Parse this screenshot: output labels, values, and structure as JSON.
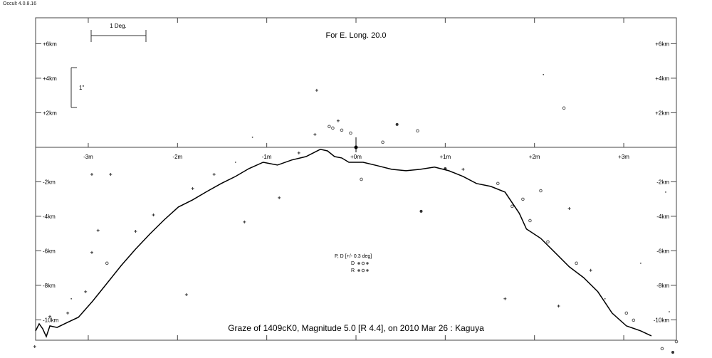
{
  "app_version": "Occult 4.0.8.16",
  "chart_data": {
    "type": "line",
    "title": "For E. Long. 20.0",
    "caption": "Graze of  1409cK0,  Magnitude 5.0 [R 4.4],  on 2010 Mar 26  :  Kaguya",
    "scale_bars": {
      "horizontal": "1 Deg.",
      "vertical": "1\""
    },
    "legend": {
      "heading": "P, D [+/- 0.3 deg]",
      "rows": [
        "D",
        "R"
      ]
    },
    "xlim": [
      -3.59,
      3.59
    ],
    "ylim": [
      -11.18,
      7.5
    ],
    "x_ticks": [
      {
        "v": -3,
        "label": "-3m"
      },
      {
        "v": -2,
        "label": "-2m"
      },
      {
        "v": -1,
        "label": "-1m"
      },
      {
        "v": 0,
        "label": "+0m"
      },
      {
        "v": 1,
        "label": "+1m"
      },
      {
        "v": 2,
        "label": "+2m"
      },
      {
        "v": 3,
        "label": "+3m"
      }
    ],
    "y_ticks": [
      {
        "v": 6,
        "label": "+6km"
      },
      {
        "v": 4,
        "label": "+4km"
      },
      {
        "v": 2,
        "label": "+2km"
      },
      {
        "v": -2,
        "label": "-2km"
      },
      {
        "v": -4,
        "label": "-4km"
      },
      {
        "v": -6,
        "label": "-6km"
      },
      {
        "v": -8,
        "label": "-8km"
      },
      {
        "v": -10,
        "label": "-10km"
      }
    ],
    "profile": [
      [
        -3.59,
        -10.64
      ],
      [
        -3.55,
        -10.23
      ],
      [
        -3.51,
        -10.52
      ],
      [
        -3.47,
        -10.97
      ],
      [
        -3.43,
        -10.35
      ],
      [
        -3.35,
        -10.44
      ],
      [
        -3.23,
        -10.14
      ],
      [
        -3.11,
        -9.85
      ],
      [
        -2.95,
        -8.91
      ],
      [
        -2.79,
        -7.88
      ],
      [
        -2.63,
        -6.85
      ],
      [
        -2.47,
        -5.9
      ],
      [
        -2.31,
        -5.03
      ],
      [
        -2.15,
        -4.21
      ],
      [
        -1.99,
        -3.46
      ],
      [
        -1.83,
        -3.05
      ],
      [
        -1.67,
        -2.56
      ],
      [
        -1.51,
        -2.1
      ],
      [
        -1.35,
        -1.69
      ],
      [
        -1.2,
        -1.24
      ],
      [
        -1.04,
        -0.87
      ],
      [
        -0.88,
        -1.03
      ],
      [
        -0.72,
        -0.74
      ],
      [
        -0.56,
        -0.54
      ],
      [
        -0.4,
        -0.12
      ],
      [
        -0.32,
        -0.21
      ],
      [
        -0.24,
        -0.54
      ],
      [
        -0.16,
        -0.62
      ],
      [
        -0.08,
        -0.87
      ],
      [
        0.08,
        -0.87
      ],
      [
        0.24,
        -1.07
      ],
      [
        0.4,
        -1.28
      ],
      [
        0.56,
        -1.36
      ],
      [
        0.72,
        -1.28
      ],
      [
        0.88,
        -1.15
      ],
      [
        1.04,
        -1.36
      ],
      [
        1.2,
        -1.69
      ],
      [
        1.35,
        -2.1
      ],
      [
        1.51,
        -2.27
      ],
      [
        1.67,
        -2.6
      ],
      [
        1.83,
        -3.83
      ],
      [
        1.91,
        -4.74
      ],
      [
        2.07,
        -5.28
      ],
      [
        2.23,
        -6.1
      ],
      [
        2.39,
        -6.93
      ],
      [
        2.55,
        -7.55
      ],
      [
        2.71,
        -8.37
      ],
      [
        2.87,
        -9.61
      ],
      [
        3.03,
        -10.35
      ],
      [
        3.19,
        -10.64
      ],
      [
        3.31,
        -10.93
      ]
    ],
    "central_marker": {
      "x": 0,
      "y": 0
    },
    "observations": [
      [
        -0.44,
        3.3,
        "+"
      ],
      [
        -0.2,
        1.53,
        "+"
      ],
      [
        -0.3,
        1.2,
        "o"
      ],
      [
        -0.26,
        1.11,
        "o"
      ],
      [
        -0.16,
        0.99,
        "o"
      ],
      [
        -0.06,
        0.82,
        "o"
      ],
      [
        -0.46,
        0.74,
        "+"
      ],
      [
        -1.16,
        0.58,
        "."
      ],
      [
        0.3,
        0.29,
        "o"
      ],
      [
        0.69,
        0.95,
        "o"
      ],
      [
        0.46,
        1.32,
        "*"
      ],
      [
        2.33,
        2.27,
        "o"
      ],
      [
        2.1,
        4.21,
        "."
      ],
      [
        -2.96,
        -1.57,
        "+"
      ],
      [
        -2.75,
        -1.57,
        "+"
      ],
      [
        -2.89,
        -4.82,
        "+"
      ],
      [
        -2.96,
        -6.1,
        "+"
      ],
      [
        -1.9,
        -8.54,
        "+"
      ],
      [
        -1.25,
        -4.33,
        "+"
      ],
      [
        -0.86,
        -2.93,
        "+"
      ],
      [
        0.06,
        -1.86,
        "o"
      ],
      [
        0.73,
        -3.71,
        "*"
      ],
      [
        1.67,
        -8.78,
        "+"
      ],
      [
        2.27,
        -9.2,
        "+"
      ],
      [
        2.07,
        -2.52,
        "o"
      ],
      [
        2.39,
        -3.55,
        "+"
      ],
      [
        3.19,
        -6.72,
        "."
      ],
      [
        3.47,
        -2.6,
        "."
      ],
      [
        3.51,
        -9.53,
        "."
      ],
      [
        3.59,
        -11.26,
        "o"
      ],
      [
        3.43,
        -11.67,
        "o"
      ],
      [
        3.55,
        -11.88,
        "*"
      ],
      [
        -3.6,
        -11.55,
        "+"
      ],
      [
        -2.27,
        -3.92,
        "+"
      ],
      [
        -2.47,
        -4.87,
        "+"
      ],
      [
        -2.79,
        -6.72,
        "o"
      ],
      [
        -3.03,
        -8.37,
        "+"
      ],
      [
        -3.19,
        -8.78,
        "."
      ],
      [
        -1.83,
        -2.39,
        "+"
      ],
      [
        -1.59,
        -1.57,
        "+"
      ],
      [
        -1.35,
        -0.87,
        "."
      ],
      [
        -0.64,
        -0.33,
        "+"
      ],
      [
        1.0,
        -1.24,
        "*"
      ],
      [
        1.2,
        -1.28,
        "+"
      ],
      [
        1.59,
        -2.1,
        "o"
      ],
      [
        1.87,
        -3.01,
        "o"
      ],
      [
        1.95,
        -4.25,
        "o"
      ],
      [
        1.75,
        -3.42,
        "o"
      ],
      [
        2.15,
        -5.48,
        "o"
      ],
      [
        2.47,
        -6.72,
        "o"
      ],
      [
        2.63,
        -7.13,
        "+"
      ],
      [
        2.79,
        -8.78,
        "."
      ],
      [
        3.03,
        -9.61,
        "o"
      ],
      [
        3.11,
        -10.02,
        "o"
      ],
      [
        -3.43,
        -9.81,
        "+"
      ],
      [
        -3.23,
        -9.61,
        "+"
      ]
    ]
  }
}
